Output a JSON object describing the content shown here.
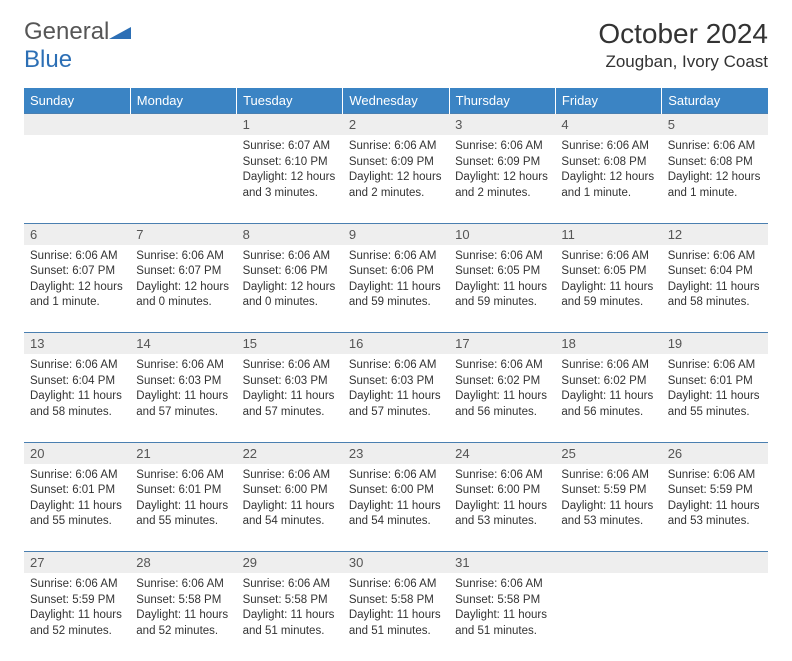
{
  "logo": {
    "text_general": "General",
    "text_blue": "Blue"
  },
  "title": "October 2024",
  "location": "Zougban, Ivory Coast",
  "colors": {
    "header_bg": "#3b84c4",
    "header_text": "#ffffff",
    "daynum_bg": "#eeeeee",
    "daynum_text": "#555555",
    "body_text": "#333333",
    "grid_line": "#4a7fb0",
    "logo_gray": "#565656",
    "logo_blue": "#2c6fb5"
  },
  "typography": {
    "title_fontsize": 28,
    "location_fontsize": 17,
    "dayhead_fontsize": 13,
    "body_fontsize": 11.5
  },
  "day_headers": [
    "Sunday",
    "Monday",
    "Tuesday",
    "Wednesday",
    "Thursday",
    "Friday",
    "Saturday"
  ],
  "weeks": [
    [
      null,
      null,
      {
        "n": "1",
        "sunrise": "Sunrise: 6:07 AM",
        "sunset": "Sunset: 6:10 PM",
        "daylight": "Daylight: 12 hours and 3 minutes."
      },
      {
        "n": "2",
        "sunrise": "Sunrise: 6:06 AM",
        "sunset": "Sunset: 6:09 PM",
        "daylight": "Daylight: 12 hours and 2 minutes."
      },
      {
        "n": "3",
        "sunrise": "Sunrise: 6:06 AM",
        "sunset": "Sunset: 6:09 PM",
        "daylight": "Daylight: 12 hours and 2 minutes."
      },
      {
        "n": "4",
        "sunrise": "Sunrise: 6:06 AM",
        "sunset": "Sunset: 6:08 PM",
        "daylight": "Daylight: 12 hours and 1 minute."
      },
      {
        "n": "5",
        "sunrise": "Sunrise: 6:06 AM",
        "sunset": "Sunset: 6:08 PM",
        "daylight": "Daylight: 12 hours and 1 minute."
      }
    ],
    [
      {
        "n": "6",
        "sunrise": "Sunrise: 6:06 AM",
        "sunset": "Sunset: 6:07 PM",
        "daylight": "Daylight: 12 hours and 1 minute."
      },
      {
        "n": "7",
        "sunrise": "Sunrise: 6:06 AM",
        "sunset": "Sunset: 6:07 PM",
        "daylight": "Daylight: 12 hours and 0 minutes."
      },
      {
        "n": "8",
        "sunrise": "Sunrise: 6:06 AM",
        "sunset": "Sunset: 6:06 PM",
        "daylight": "Daylight: 12 hours and 0 minutes."
      },
      {
        "n": "9",
        "sunrise": "Sunrise: 6:06 AM",
        "sunset": "Sunset: 6:06 PM",
        "daylight": "Daylight: 11 hours and 59 minutes."
      },
      {
        "n": "10",
        "sunrise": "Sunrise: 6:06 AM",
        "sunset": "Sunset: 6:05 PM",
        "daylight": "Daylight: 11 hours and 59 minutes."
      },
      {
        "n": "11",
        "sunrise": "Sunrise: 6:06 AM",
        "sunset": "Sunset: 6:05 PM",
        "daylight": "Daylight: 11 hours and 59 minutes."
      },
      {
        "n": "12",
        "sunrise": "Sunrise: 6:06 AM",
        "sunset": "Sunset: 6:04 PM",
        "daylight": "Daylight: 11 hours and 58 minutes."
      }
    ],
    [
      {
        "n": "13",
        "sunrise": "Sunrise: 6:06 AM",
        "sunset": "Sunset: 6:04 PM",
        "daylight": "Daylight: 11 hours and 58 minutes."
      },
      {
        "n": "14",
        "sunrise": "Sunrise: 6:06 AM",
        "sunset": "Sunset: 6:03 PM",
        "daylight": "Daylight: 11 hours and 57 minutes."
      },
      {
        "n": "15",
        "sunrise": "Sunrise: 6:06 AM",
        "sunset": "Sunset: 6:03 PM",
        "daylight": "Daylight: 11 hours and 57 minutes."
      },
      {
        "n": "16",
        "sunrise": "Sunrise: 6:06 AM",
        "sunset": "Sunset: 6:03 PM",
        "daylight": "Daylight: 11 hours and 57 minutes."
      },
      {
        "n": "17",
        "sunrise": "Sunrise: 6:06 AM",
        "sunset": "Sunset: 6:02 PM",
        "daylight": "Daylight: 11 hours and 56 minutes."
      },
      {
        "n": "18",
        "sunrise": "Sunrise: 6:06 AM",
        "sunset": "Sunset: 6:02 PM",
        "daylight": "Daylight: 11 hours and 56 minutes."
      },
      {
        "n": "19",
        "sunrise": "Sunrise: 6:06 AM",
        "sunset": "Sunset: 6:01 PM",
        "daylight": "Daylight: 11 hours and 55 minutes."
      }
    ],
    [
      {
        "n": "20",
        "sunrise": "Sunrise: 6:06 AM",
        "sunset": "Sunset: 6:01 PM",
        "daylight": "Daylight: 11 hours and 55 minutes."
      },
      {
        "n": "21",
        "sunrise": "Sunrise: 6:06 AM",
        "sunset": "Sunset: 6:01 PM",
        "daylight": "Daylight: 11 hours and 55 minutes."
      },
      {
        "n": "22",
        "sunrise": "Sunrise: 6:06 AM",
        "sunset": "Sunset: 6:00 PM",
        "daylight": "Daylight: 11 hours and 54 minutes."
      },
      {
        "n": "23",
        "sunrise": "Sunrise: 6:06 AM",
        "sunset": "Sunset: 6:00 PM",
        "daylight": "Daylight: 11 hours and 54 minutes."
      },
      {
        "n": "24",
        "sunrise": "Sunrise: 6:06 AM",
        "sunset": "Sunset: 6:00 PM",
        "daylight": "Daylight: 11 hours and 53 minutes."
      },
      {
        "n": "25",
        "sunrise": "Sunrise: 6:06 AM",
        "sunset": "Sunset: 5:59 PM",
        "daylight": "Daylight: 11 hours and 53 minutes."
      },
      {
        "n": "26",
        "sunrise": "Sunrise: 6:06 AM",
        "sunset": "Sunset: 5:59 PM",
        "daylight": "Daylight: 11 hours and 53 minutes."
      }
    ],
    [
      {
        "n": "27",
        "sunrise": "Sunrise: 6:06 AM",
        "sunset": "Sunset: 5:59 PM",
        "daylight": "Daylight: 11 hours and 52 minutes."
      },
      {
        "n": "28",
        "sunrise": "Sunrise: 6:06 AM",
        "sunset": "Sunset: 5:58 PM",
        "daylight": "Daylight: 11 hours and 52 minutes."
      },
      {
        "n": "29",
        "sunrise": "Sunrise: 6:06 AM",
        "sunset": "Sunset: 5:58 PM",
        "daylight": "Daylight: 11 hours and 51 minutes."
      },
      {
        "n": "30",
        "sunrise": "Sunrise: 6:06 AM",
        "sunset": "Sunset: 5:58 PM",
        "daylight": "Daylight: 11 hours and 51 minutes."
      },
      {
        "n": "31",
        "sunrise": "Sunrise: 6:06 AM",
        "sunset": "Sunset: 5:58 PM",
        "daylight": "Daylight: 11 hours and 51 minutes."
      },
      null,
      null
    ]
  ]
}
